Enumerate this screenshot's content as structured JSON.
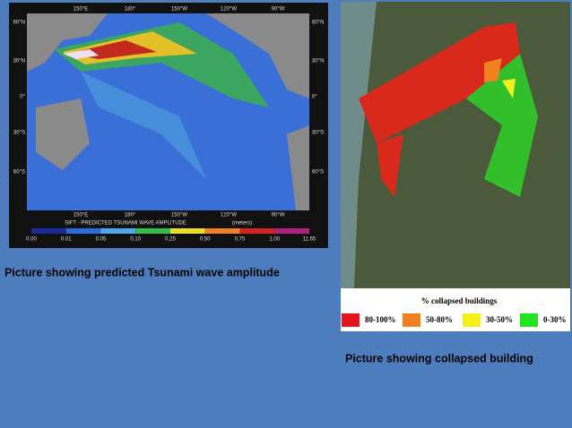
{
  "left_panel": {
    "map": {
      "top_labels": [
        "150°E",
        "180°",
        "150°W",
        "120°W",
        "90°W"
      ],
      "bottom_labels": [
        "150°E",
        "180°",
        "150°W",
        "120°W",
        "90°W"
      ],
      "left_labels": [
        "60°N",
        "30°N",
        "0°",
        "30°S",
        "60°S"
      ],
      "right_labels": [
        "60°N",
        "30°N",
        "0°",
        "30°S",
        "60°S"
      ],
      "colorbar_title": "SIFT - PREDICTED TSUNAMI WAVE AMPLITUDE",
      "colorbar_unit": "(meters)",
      "colorbar_labels": [
        "0.00",
        "0.01",
        "0.05",
        "0.10",
        "0.25",
        "0.50",
        "0.75",
        "1.00",
        "11.65"
      ]
    },
    "caption": "Picture showing predicted Tsunami wave amplitude"
  },
  "right_panel": {
    "legend_title": "% collapsed buildings",
    "legend_items": [
      {
        "label": "80-100%",
        "color": "#e5141c"
      },
      {
        "label": "50-80%",
        "color": "#f08020"
      },
      {
        "label": "30-50%",
        "color": "#f5ef1a"
      },
      {
        "label": "0-30%",
        "color": "#1ee51e"
      }
    ],
    "caption": "Picture showing collapsed building"
  }
}
